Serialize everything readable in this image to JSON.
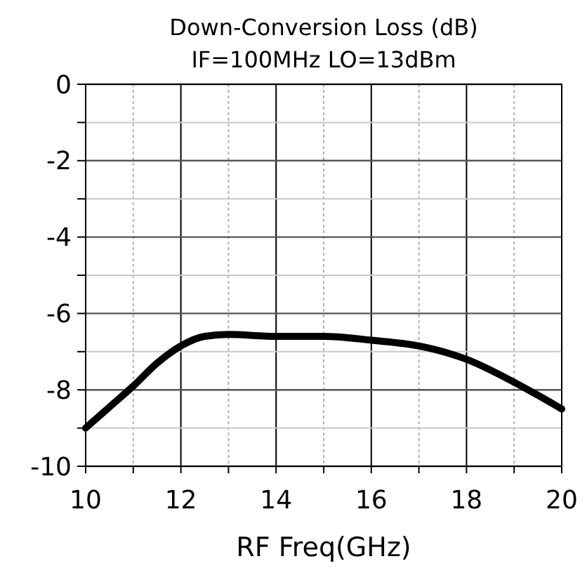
{
  "chart_data": {
    "type": "line",
    "title": "Down-Conversion Loss (dB)",
    "subtitle": "IF=100MHz LO=13dBm",
    "xlabel": "RF Freq(GHz)",
    "x": [
      10,
      10.5,
      11,
      11.5,
      12,
      12.5,
      13,
      14,
      15,
      16,
      17,
      18,
      19,
      20
    ],
    "series": [
      {
        "color": "#000000",
        "values": [
          -9,
          -8.45,
          -7.9,
          -7.3,
          -6.85,
          -6.6,
          -6.55,
          -6.6,
          -6.6,
          -6.7,
          -6.85,
          -7.2,
          -7.8,
          -8.5
        ]
      }
    ],
    "xlim": [
      10,
      20
    ],
    "ylim": [
      -10,
      0
    ],
    "xticks": [
      10,
      {
        "value": 11,
        "label": null
      },
      12,
      {
        "value": 13,
        "label": null
      },
      14,
      {
        "value": 15,
        "label": null
      },
      16,
      {
        "value": 17,
        "label": null
      },
      18,
      {
        "value": 19,
        "label": null
      },
      20
    ],
    "yticks": [
      -10,
      {
        "value": -9,
        "label": null
      },
      -8,
      {
        "value": -7,
        "label": null
      },
      -6,
      {
        "value": -5,
        "label": null
      },
      -4,
      {
        "value": -3,
        "label": null
      },
      -2,
      {
        "value": -1,
        "label": null
      },
      0
    ],
    "grid": true,
    "marker": "none",
    "line_style": "solid"
  }
}
